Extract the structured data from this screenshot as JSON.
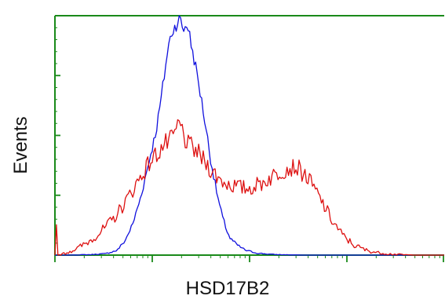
{
  "chart_data": {
    "type": "line",
    "title": "",
    "xlabel": "HSD17B2",
    "ylabel": "Events",
    "x_scale": "log",
    "xlim": [
      0,
      1
    ],
    "ylim": [
      0,
      1
    ],
    "grid": false,
    "legend": "none",
    "axis_color": "#1a8a1a",
    "series": [
      {
        "color": "#1010dd",
        "x": [
          0.03,
          0.09,
          0.13,
          0.16,
          0.18,
          0.2,
          0.22,
          0.24,
          0.26,
          0.27,
          0.28,
          0.29,
          0.3,
          0.31,
          0.32,
          0.33,
          0.34,
          0.35,
          0.36,
          0.37,
          0.38,
          0.39,
          0.4,
          0.41,
          0.42,
          0.43,
          0.44,
          0.45,
          0.47,
          0.49,
          0.52,
          0.56,
          0.6,
          0.64,
          0.7,
          0.8,
          0.9,
          1.0
        ],
        "y": [
          0.0,
          0.002,
          0.006,
          0.02,
          0.06,
          0.13,
          0.24,
          0.38,
          0.52,
          0.62,
          0.74,
          0.86,
          0.93,
          0.96,
          0.99,
          0.94,
          0.97,
          0.88,
          0.8,
          0.71,
          0.61,
          0.51,
          0.4,
          0.31,
          0.23,
          0.16,
          0.11,
          0.07,
          0.04,
          0.02,
          0.008,
          0.003,
          0.001,
          0.0,
          0.0,
          0.0,
          0.0,
          0.0
        ]
      },
      {
        "color": "#dd1010",
        "x": [
          0.0,
          0.003,
          0.006,
          0.01,
          0.03,
          0.06,
          0.09,
          0.12,
          0.15,
          0.18,
          0.21,
          0.24,
          0.26,
          0.28,
          0.3,
          0.32,
          0.34,
          0.36,
          0.38,
          0.4,
          0.42,
          0.44,
          0.46,
          0.48,
          0.5,
          0.53,
          0.56,
          0.59,
          0.62,
          0.65,
          0.68,
          0.71,
          0.74,
          0.77,
          0.8,
          0.83,
          0.86,
          0.89,
          0.92,
          0.95,
          0.98,
          1.0
        ],
        "y": [
          0.0,
          0.17,
          0.0,
          0.0,
          0.01,
          0.03,
          0.06,
          0.1,
          0.15,
          0.22,
          0.3,
          0.38,
          0.42,
          0.46,
          0.48,
          0.55,
          0.46,
          0.44,
          0.4,
          0.36,
          0.32,
          0.3,
          0.29,
          0.28,
          0.28,
          0.3,
          0.33,
          0.36,
          0.37,
          0.32,
          0.24,
          0.15,
          0.08,
          0.04,
          0.02,
          0.01,
          0.005,
          0.002,
          0.0,
          0.0,
          0.0,
          0.0
        ]
      }
    ]
  }
}
